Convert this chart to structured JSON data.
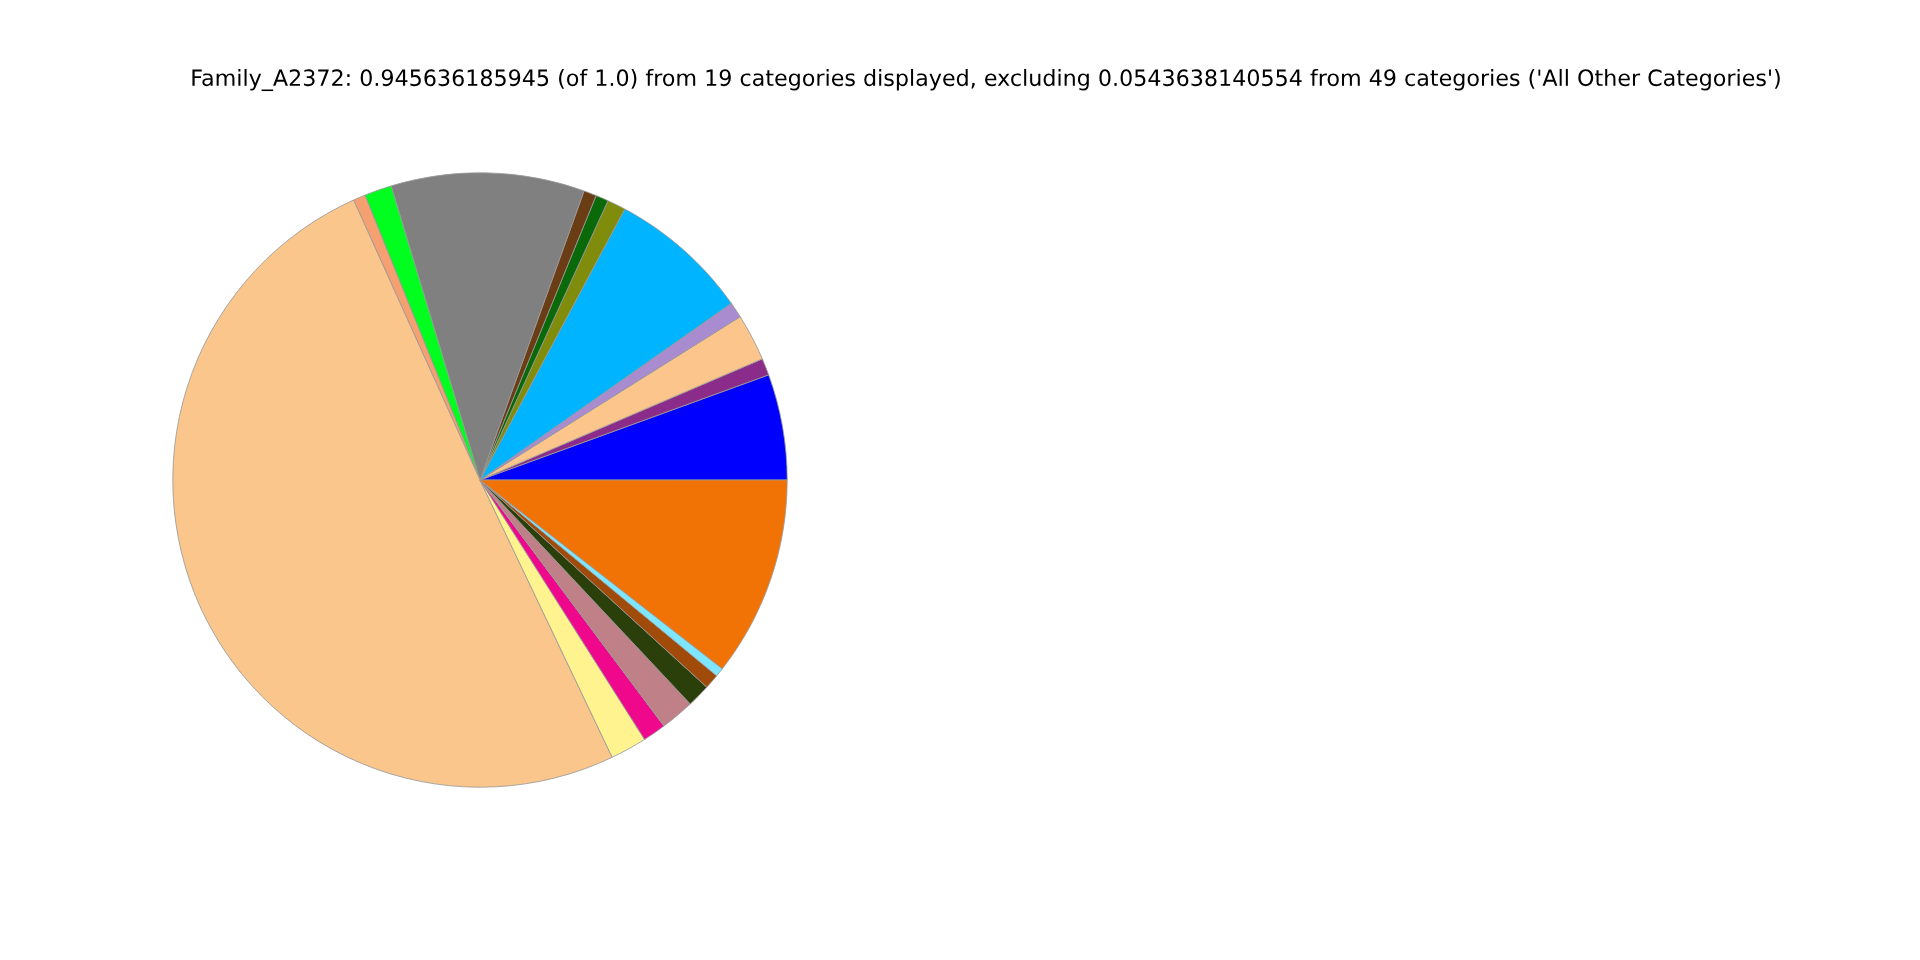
{
  "chart_data": {
    "type": "pie",
    "title": "Family_A2372: 0.945636185945 (of 1.0) from 19 categories displayed, excluding 0.0543638140554 from 49 categories ('All Other Categories')",
    "categories": [
      null,
      null,
      null,
      null,
      null,
      null,
      null,
      null,
      null,
      null,
      null,
      null,
      null,
      null,
      null,
      null,
      null,
      null,
      null
    ],
    "values": [
      5.56,
      0.89,
      2.47,
      0.83,
      7.44,
      0.97,
      0.67,
      0.67,
      10.17,
      1.44,
      0.64,
      50.33,
      1.92,
      1.22,
      1.78,
      1.22,
      0.78,
      0.47,
      10.53
    ],
    "colors": [
      "#0000ff",
      "#8b2c8b",
      "#fbc58b",
      "#a98bd0",
      "#00b4ff",
      "#7f8c0c",
      "#0a6a0a",
      "#6b3d14",
      "#808080",
      "#00ff1e",
      "#f4a070",
      "#fbc68c",
      "#fff38f",
      "#f0088c",
      "#c08088",
      "#2a3f0a",
      "#a04b0a",
      "#7fe6ff",
      "#f27305"
    ]
  }
}
